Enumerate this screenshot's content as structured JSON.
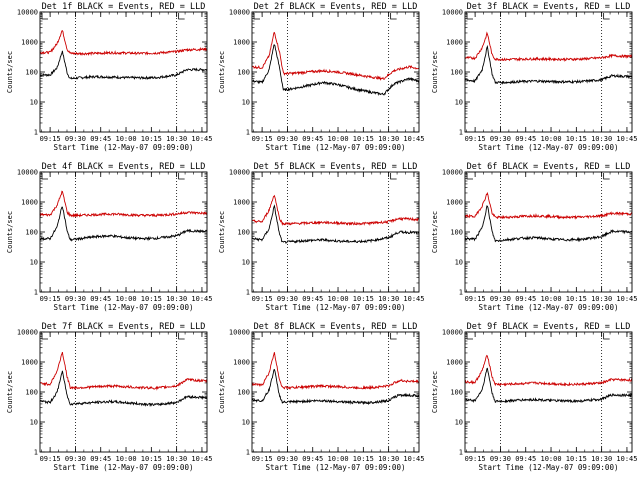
{
  "colors": {
    "events": "#000000",
    "lld": "#cc0000",
    "frame": "#000000",
    "background": "#ffffff"
  },
  "chart_data": [
    {
      "type": "line",
      "detector": "Det 1f",
      "title": "Det 1f BLACK = Events, RED = LLD",
      "xlabel": "Start Time (12-May-07 09:09:00)",
      "ylabel": "Counts/sec",
      "yscale": "log",
      "ylim": [
        1,
        10000
      ],
      "ytick_labels": [
        "1",
        "10",
        "100",
        "1000",
        "10000"
      ],
      "xtick_labels": [
        "09:15",
        "09:30",
        "09:45",
        "10:00",
        "10:15",
        "10:30",
        "10:45"
      ],
      "x_range_hours": [
        9.15,
        10.8
      ],
      "vlines_hours": [
        9.5,
        10.5
      ],
      "legend": "top",
      "grid": false,
      "series": [
        {
          "name": "Events",
          "color": "#000000",
          "x": [
            9.15,
            9.25,
            9.32,
            9.37,
            9.42,
            9.45,
            9.55,
            9.7,
            9.85,
            10.0,
            10.15,
            10.3,
            10.5,
            10.6,
            10.8
          ],
          "y": [
            80,
            80,
            140,
            500,
            90,
            60,
            65,
            70,
            68,
            65,
            64,
            65,
            80,
            120,
            120
          ]
        },
        {
          "name": "LLD",
          "color": "#cc0000",
          "x": [
            9.15,
            9.25,
            9.32,
            9.37,
            9.42,
            9.45,
            9.55,
            9.7,
            9.85,
            10.0,
            10.15,
            10.3,
            10.5,
            10.6,
            10.8
          ],
          "y": [
            450,
            450,
            900,
            2500,
            550,
            420,
            410,
            420,
            440,
            430,
            420,
            430,
            480,
            550,
            580
          ]
        }
      ]
    },
    {
      "type": "line",
      "detector": "Det 2f",
      "title": "Det 2f BLACK = Events, RED = LLD",
      "xlabel": "Start Time (12-May-07 09:09:00)",
      "ylabel": "Counts/sec",
      "yscale": "log",
      "ylim": [
        1,
        10000
      ],
      "ytick_labels": [
        "1",
        "10",
        "100",
        "1000",
        "10000"
      ],
      "xtick_labels": [
        "09:15",
        "09:30",
        "09:45",
        "10:00",
        "10:15",
        "10:30",
        "10:45"
      ],
      "x_range_hours": [
        9.15,
        10.8
      ],
      "vlines_hours": [
        9.5,
        10.5
      ],
      "legend": "top",
      "grid": false,
      "series": [
        {
          "name": "Events",
          "color": "#000000",
          "x": [
            9.15,
            9.25,
            9.32,
            9.37,
            9.42,
            9.46,
            9.55,
            9.7,
            9.85,
            10.0,
            10.15,
            10.3,
            10.45,
            10.55,
            10.7,
            10.8
          ],
          "y": [
            50,
            45,
            120,
            900,
            150,
            25,
            28,
            35,
            45,
            38,
            28,
            22,
            18,
            40,
            60,
            50
          ]
        },
        {
          "name": "LLD",
          "color": "#cc0000",
          "x": [
            9.15,
            9.25,
            9.32,
            9.37,
            9.42,
            9.46,
            9.55,
            9.7,
            9.85,
            10.0,
            10.15,
            10.3,
            10.45,
            10.55,
            10.7,
            10.8
          ],
          "y": [
            150,
            140,
            350,
            2200,
            500,
            90,
            90,
            100,
            110,
            100,
            85,
            70,
            60,
            110,
            150,
            130
          ]
        }
      ]
    },
    {
      "type": "line",
      "detector": "Det 3f",
      "title": "Det 3f BLACK = Events, RED = LLD",
      "xlabel": "Start Time (12-May-07 09:09:00)",
      "ylabel": "Counts/sec",
      "yscale": "log",
      "ylim": [
        1,
        10000
      ],
      "ytick_labels": [
        "1",
        "10",
        "100",
        "1000",
        "10000"
      ],
      "xtick_labels": [
        "09:15",
        "09:30",
        "09:45",
        "10:00",
        "10:15",
        "10:30",
        "10:45"
      ],
      "x_range_hours": [
        9.15,
        10.8
      ],
      "vlines_hours": [
        9.5,
        10.5
      ],
      "legend": "top",
      "grid": false,
      "series": [
        {
          "name": "Events",
          "color": "#000000",
          "x": [
            9.15,
            9.25,
            9.32,
            9.37,
            9.42,
            9.45,
            9.55,
            9.7,
            9.85,
            10.0,
            10.15,
            10.3,
            10.5,
            10.6,
            10.8
          ],
          "y": [
            55,
            50,
            120,
            700,
            80,
            45,
            45,
            48,
            50,
            48,
            47,
            48,
            55,
            75,
            70
          ]
        },
        {
          "name": "LLD",
          "color": "#cc0000",
          "x": [
            9.15,
            9.25,
            9.32,
            9.37,
            9.42,
            9.45,
            9.55,
            9.7,
            9.85,
            10.0,
            10.15,
            10.3,
            10.5,
            10.6,
            10.8
          ],
          "y": [
            300,
            290,
            650,
            2000,
            350,
            270,
            260,
            270,
            275,
            270,
            265,
            270,
            300,
            350,
            330
          ]
        }
      ]
    },
    {
      "type": "line",
      "detector": "Det 4f",
      "title": "Det 4f BLACK = Events, RED = LLD",
      "xlabel": "Start Time (12-May-07 09:09:00)",
      "ylabel": "Counts/sec",
      "yscale": "log",
      "ylim": [
        1,
        10000
      ],
      "ytick_labels": [
        "1",
        "10",
        "100",
        "1000",
        "10000"
      ],
      "xtick_labels": [
        "09:15",
        "09:30",
        "09:45",
        "10:00",
        "10:15",
        "10:30",
        "10:45"
      ],
      "x_range_hours": [
        9.15,
        10.8
      ],
      "vlines_hours": [
        9.5,
        10.5
      ],
      "legend": "top",
      "grid": false,
      "series": [
        {
          "name": "Events",
          "color": "#000000",
          "x": [
            9.15,
            9.25,
            9.32,
            9.37,
            9.42,
            9.45,
            9.55,
            9.7,
            9.85,
            10.0,
            10.15,
            10.3,
            10.5,
            10.6,
            10.8
          ],
          "y": [
            60,
            60,
            150,
            800,
            100,
            55,
            60,
            70,
            75,
            65,
            60,
            62,
            75,
            110,
            105
          ]
        },
        {
          "name": "LLD",
          "color": "#cc0000",
          "x": [
            9.15,
            9.25,
            9.32,
            9.37,
            9.42,
            9.45,
            9.55,
            9.7,
            9.85,
            10.0,
            10.15,
            10.3,
            10.5,
            10.6,
            10.8
          ],
          "y": [
            380,
            370,
            800,
            2300,
            450,
            360,
            360,
            380,
            400,
            380,
            360,
            360,
            400,
            450,
            420
          ]
        }
      ]
    },
    {
      "type": "line",
      "detector": "Det 5f",
      "title": "Det 5f BLACK = Events, RED = LLD",
      "xlabel": "Start Time (12-May-07 09:09:00)",
      "ylabel": "Counts/sec",
      "yscale": "log",
      "ylim": [
        1,
        10000
      ],
      "ytick_labels": [
        "1",
        "10",
        "100",
        "1000",
        "10000"
      ],
      "xtick_labels": [
        "09:15",
        "09:30",
        "09:45",
        "10:00",
        "10:15",
        "10:30",
        "10:45"
      ],
      "x_range_hours": [
        9.15,
        10.8
      ],
      "vlines_hours": [
        9.5,
        10.5
      ],
      "legend": "top",
      "grid": false,
      "series": [
        {
          "name": "Events",
          "color": "#000000",
          "x": [
            9.15,
            9.25,
            9.32,
            9.37,
            9.42,
            9.45,
            9.55,
            9.7,
            9.85,
            10.0,
            10.15,
            10.3,
            10.5,
            10.6,
            10.8
          ],
          "y": [
            60,
            55,
            130,
            750,
            90,
            45,
            48,
            52,
            55,
            50,
            48,
            50,
            65,
            100,
            95
          ]
        },
        {
          "name": "LLD",
          "color": "#cc0000",
          "x": [
            9.15,
            9.25,
            9.32,
            9.37,
            9.42,
            9.45,
            9.55,
            9.7,
            9.85,
            10.0,
            10.15,
            10.3,
            10.5,
            10.6,
            10.8
          ],
          "y": [
            230,
            220,
            550,
            1800,
            300,
            190,
            190,
            200,
            210,
            200,
            190,
            195,
            220,
            280,
            260
          ]
        }
      ]
    },
    {
      "type": "line",
      "detector": "Det 6f",
      "title": "Det 6f BLACK = Events, RED = LLD",
      "xlabel": "Start Time (12-May-07 09:09:00)",
      "ylabel": "Counts/sec",
      "yscale": "log",
      "ylim": [
        1,
        10000
      ],
      "ytick_labels": [
        "1",
        "10",
        "100",
        "1000",
        "10000"
      ],
      "xtick_labels": [
        "09:15",
        "09:30",
        "09:45",
        "10:00",
        "10:15",
        "10:30",
        "10:45"
      ],
      "x_range_hours": [
        9.15,
        10.8
      ],
      "vlines_hours": [
        9.5,
        10.5
      ],
      "legend": "top",
      "grid": false,
      "series": [
        {
          "name": "Events",
          "color": "#000000",
          "x": [
            9.15,
            9.25,
            9.32,
            9.37,
            9.42,
            9.45,
            9.55,
            9.7,
            9.85,
            10.0,
            10.15,
            10.3,
            10.5,
            10.6,
            10.8
          ],
          "y": [
            60,
            58,
            140,
            800,
            95,
            50,
            55,
            62,
            65,
            58,
            55,
            57,
            70,
            105,
            100
          ]
        },
        {
          "name": "LLD",
          "color": "#cc0000",
          "x": [
            9.15,
            9.25,
            9.32,
            9.37,
            9.42,
            9.45,
            9.55,
            9.7,
            9.85,
            10.0,
            10.15,
            10.3,
            10.5,
            10.6,
            10.8
          ],
          "y": [
            340,
            330,
            750,
            2000,
            400,
            310,
            310,
            330,
            350,
            330,
            310,
            315,
            350,
            420,
            400
          ]
        }
      ]
    },
    {
      "type": "line",
      "detector": "Det 7f",
      "title": "Det 7f BLACK = Events, RED = LLD",
      "xlabel": "Start Time (12-May-07 09:09:00)",
      "ylabel": "Counts/sec",
      "yscale": "log",
      "ylim": [
        1,
        10000
      ],
      "ytick_labels": [
        "1",
        "10",
        "100",
        "1000",
        "10000"
      ],
      "xtick_labels": [
        "09:15",
        "09:30",
        "09:45",
        "10:00",
        "10:15",
        "10:30",
        "10:45"
      ],
      "x_range_hours": [
        9.15,
        10.8
      ],
      "vlines_hours": [
        9.5,
        10.5
      ],
      "legend": "top",
      "grid": false,
      "series": [
        {
          "name": "Events",
          "color": "#000000",
          "x": [
            9.15,
            9.25,
            9.32,
            9.37,
            9.42,
            9.45,
            9.55,
            9.7,
            9.85,
            10.0,
            10.15,
            10.3,
            10.5,
            10.6,
            10.8
          ],
          "y": [
            50,
            45,
            100,
            500,
            70,
            40,
            42,
            45,
            48,
            44,
            40,
            38,
            45,
            70,
            65
          ]
        },
        {
          "name": "LLD",
          "color": "#cc0000",
          "x": [
            9.15,
            9.25,
            9.32,
            9.37,
            9.42,
            9.45,
            9.55,
            9.7,
            9.85,
            10.0,
            10.15,
            10.3,
            10.5,
            10.6,
            10.8
          ],
          "y": [
            200,
            180,
            500,
            2200,
            300,
            140,
            140,
            150,
            160,
            150,
            140,
            135,
            160,
            260,
            230
          ]
        }
      ]
    },
    {
      "type": "line",
      "detector": "Det 8f",
      "title": "Det 8f BLACK = Events, RED = LLD",
      "xlabel": "Start Time (12-May-07 09:09:00)",
      "ylabel": "Counts/sec",
      "yscale": "log",
      "ylim": [
        1,
        10000
      ],
      "ytick_labels": [
        "1",
        "10",
        "100",
        "1000",
        "10000"
      ],
      "xtick_labels": [
        "09:15",
        "09:30",
        "09:45",
        "10:00",
        "10:15",
        "10:30",
        "10:45"
      ],
      "x_range_hours": [
        9.15,
        10.8
      ],
      "vlines_hours": [
        9.5,
        10.5
      ],
      "legend": "top",
      "grid": false,
      "series": [
        {
          "name": "Events",
          "color": "#000000",
          "x": [
            9.15,
            9.25,
            9.32,
            9.37,
            9.42,
            9.45,
            9.55,
            9.7,
            9.85,
            10.0,
            10.15,
            10.3,
            10.5,
            10.6,
            10.8
          ],
          "y": [
            55,
            50,
            120,
            600,
            80,
            45,
            47,
            50,
            52,
            48,
            45,
            44,
            52,
            80,
            75
          ]
        },
        {
          "name": "LLD",
          "color": "#cc0000",
          "x": [
            9.15,
            9.25,
            9.32,
            9.37,
            9.42,
            9.45,
            9.55,
            9.7,
            9.85,
            10.0,
            10.15,
            10.3,
            10.5,
            10.6,
            10.8
          ],
          "y": [
            180,
            170,
            450,
            2100,
            280,
            140,
            140,
            150,
            160,
            150,
            140,
            138,
            160,
            240,
            220
          ]
        }
      ]
    },
    {
      "type": "line",
      "detector": "Det 9f",
      "title": "Det 9f BLACK = Events, RED = LLD",
      "xlabel": "Start Time (12-May-07 09:09:00)",
      "ylabel": "Counts/sec",
      "yscale": "log",
      "ylim": [
        1,
        10000
      ],
      "ytick_labels": [
        "1",
        "10",
        "100",
        "1000",
        "10000"
      ],
      "xtick_labels": [
        "09:15",
        "09:30",
        "09:45",
        "10:00",
        "10:15",
        "10:30",
        "10:45"
      ],
      "x_range_hours": [
        9.15,
        10.8
      ],
      "vlines_hours": [
        9.5,
        10.5
      ],
      "legend": "top",
      "grid": false,
      "series": [
        {
          "name": "Events",
          "color": "#000000",
          "x": [
            9.15,
            9.25,
            9.32,
            9.37,
            9.42,
            9.45,
            9.55,
            9.7,
            9.85,
            10.0,
            10.15,
            10.3,
            10.5,
            10.6,
            10.8
          ],
          "y": [
            55,
            52,
            120,
            650,
            85,
            48,
            50,
            54,
            56,
            52,
            50,
            50,
            58,
            80,
            78
          ]
        },
        {
          "name": "LLD",
          "color": "#cc0000",
          "x": [
            9.15,
            9.25,
            9.32,
            9.37,
            9.42,
            9.45,
            9.55,
            9.7,
            9.85,
            10.0,
            10.15,
            10.3,
            10.5,
            10.6,
            10.8
          ],
          "y": [
            220,
            210,
            520,
            1800,
            300,
            180,
            180,
            190,
            200,
            190,
            180,
            182,
            200,
            260,
            250
          ]
        }
      ]
    }
  ]
}
